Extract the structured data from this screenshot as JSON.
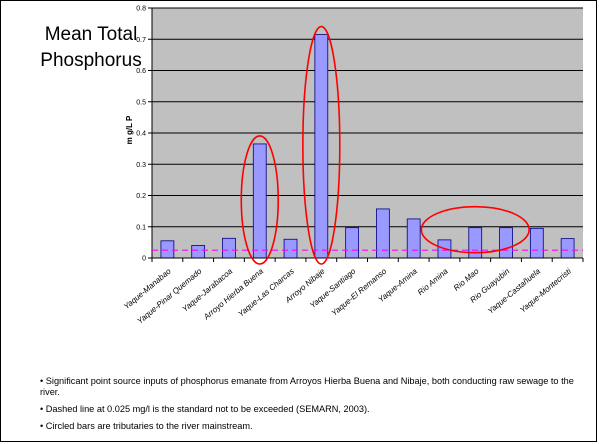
{
  "slide": {
    "title": "Mean Total Phosphorus",
    "bullets": [
      "• Significant point source inputs of phosphorus emanate from Arroyos Hierba Buena and Nibaje, both conducting raw sewage to the river.",
      "• Dashed line at 0.025 mg/l is the standard not to be exceeded (SEMARN, 2003).",
      "• Circled bars are tributaries to the river mainstream."
    ]
  },
  "chart_data": {
    "type": "bar",
    "ylabel": "m g/L P",
    "ylim": [
      0,
      0.8
    ],
    "yticks": [
      "0",
      "0.1",
      "0.2",
      "0.3",
      "0.4",
      "0.5",
      "0.6",
      "0.7",
      "0.8"
    ],
    "categories": [
      "Yaque-Manabao",
      "Yaque-Pinar Quemado",
      "Yaque-Jarabacoa",
      "Arroyo Hierba Buena",
      "Yaque-Las Charcas",
      "Arroyo Nibaje",
      "Yaque-Santiago",
      "Yaque-El Remanso",
      "Yaque-Amina",
      "Rio Amina",
      "Rio Mao",
      "Rio Guayubin",
      "Yaque-Castañuela",
      "Yaque-Montecristi"
    ],
    "series": [
      {
        "values": [
          0.055,
          0.04,
          0.063,
          0.365,
          0.06,
          0.715,
          0.097,
          0.157,
          0.125,
          0.058,
          0.097,
          0.097,
          0.095,
          0.062
        ]
      }
    ],
    "reference_line": {
      "value": 0.025,
      "style": "dashed",
      "color": "#ff00ff"
    },
    "circled_categories": [
      [
        "Arroyo Hierba Buena"
      ],
      [
        "Arroyo Nibaje"
      ],
      [
        "Rio Amina",
        "Rio Mao",
        "Rio Guayubin"
      ]
    ],
    "colors": {
      "plot_background": "#c0c0c0",
      "bar_fill": "#9999ff",
      "bar_stroke": "#000080",
      "circle_stroke": "#ff0000"
    },
    "grid": true
  }
}
